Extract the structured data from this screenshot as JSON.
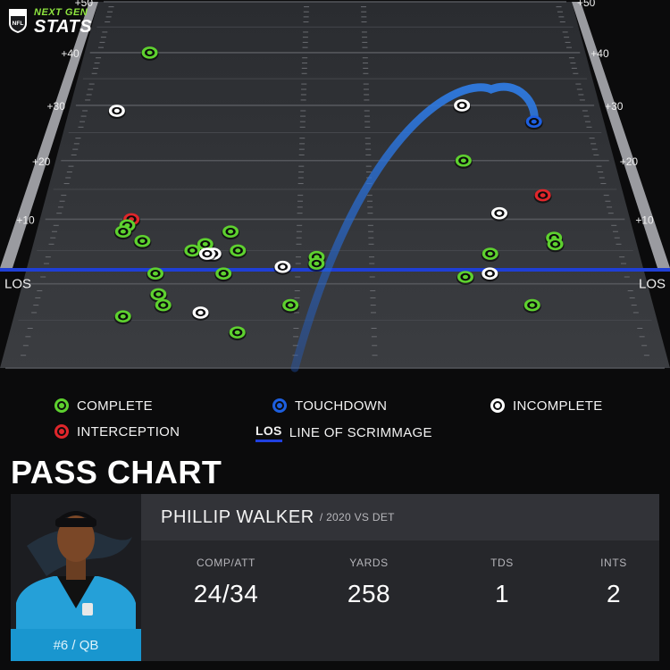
{
  "brand": {
    "league_icon": "nfl-shield-icon",
    "line1": "NEXT GEN",
    "line2": "STATS"
  },
  "chart_data": {
    "type": "scatter",
    "title": "PASS CHART",
    "x_axis": "field width, left to right (sideline to sideline)",
    "y_axis": "yards past line of scrimmage",
    "ylim": [
      -10,
      50
    ],
    "left_yard_labels": [
      "+50",
      "+40",
      "+30",
      "+20",
      "+10",
      "LOS"
    ],
    "right_yard_labels": [
      "+50",
      "+40",
      "+30",
      "+20",
      "+10",
      "LOS"
    ],
    "yard_ticks": [
      50,
      40,
      30,
      20,
      10,
      0
    ],
    "colors": {
      "complete": "#5ed12f",
      "touchdown": "#1d5fe0",
      "incomplete": "#ffffff",
      "interception": "#e0262b",
      "los": "#1f3fd6"
    },
    "points": [
      {
        "x": 0.13,
        "y": 40,
        "result": "complete"
      },
      {
        "x": 0.09,
        "y": 29,
        "result": "incomplete"
      },
      {
        "x": 0.74,
        "y": 30,
        "result": "incomplete"
      },
      {
        "x": 0.73,
        "y": 20,
        "result": "complete"
      },
      {
        "x": 0.86,
        "y": 14,
        "result": "interception"
      },
      {
        "x": 0.78,
        "y": 11,
        "result": "incomplete"
      },
      {
        "x": 0.155,
        "y": 10,
        "result": "interception"
      },
      {
        "x": 0.15,
        "y": 9,
        "result": "complete"
      },
      {
        "x": 0.145,
        "y": 8,
        "result": "complete"
      },
      {
        "x": 0.325,
        "y": 8,
        "result": "complete"
      },
      {
        "x": 0.18,
        "y": 6.5,
        "result": "complete"
      },
      {
        "x": 0.285,
        "y": 6,
        "result": "complete"
      },
      {
        "x": 0.265,
        "y": 5,
        "result": "complete"
      },
      {
        "x": 0.34,
        "y": 5,
        "result": "complete"
      },
      {
        "x": 0.3,
        "y": 4.5,
        "result": "incomplete"
      },
      {
        "x": 0.29,
        "y": 4.5,
        "result": "incomplete"
      },
      {
        "x": 0.865,
        "y": 7,
        "result": "complete"
      },
      {
        "x": 0.865,
        "y": 6,
        "result": "complete"
      },
      {
        "x": 0.755,
        "y": 4.5,
        "result": "complete"
      },
      {
        "x": 0.47,
        "y": 4,
        "result": "complete"
      },
      {
        "x": 0.47,
        "y": 3,
        "result": "complete"
      },
      {
        "x": 0.415,
        "y": 2.5,
        "result": "incomplete"
      },
      {
        "x": 0.21,
        "y": 1.5,
        "result": "complete"
      },
      {
        "x": 0.32,
        "y": 1.5,
        "result": "complete"
      },
      {
        "x": 0.75,
        "y": 1.5,
        "result": "incomplete"
      },
      {
        "x": 0.71,
        "y": 1,
        "result": "complete"
      },
      {
        "x": 0.22,
        "y": -1.5,
        "result": "complete"
      },
      {
        "x": 0.23,
        "y": -3,
        "result": "complete"
      },
      {
        "x": 0.43,
        "y": -3,
        "result": "complete"
      },
      {
        "x": 0.81,
        "y": -3,
        "result": "complete"
      },
      {
        "x": 0.29,
        "y": -4,
        "result": "incomplete"
      },
      {
        "x": 0.17,
        "y": -4.5,
        "result": "complete"
      },
      {
        "x": 0.35,
        "y": -6.5,
        "result": "complete"
      },
      {
        "x": 0.87,
        "y": 27,
        "result": "touchdown"
      }
    ],
    "touchdown_arc": {
      "from": {
        "x": 0.44,
        "y": -10
      },
      "peak": {
        "x": 0.8,
        "y": 33
      },
      "to": {
        "x": 0.87,
        "y": 27
      }
    }
  },
  "legend": {
    "complete": "COMPLETE",
    "touchdown": "TOUCHDOWN",
    "incomplete": "INCOMPLETE",
    "interception": "INTERCEPTION",
    "los_abbr": "LOS",
    "los": "LINE OF SCRIMMAGE"
  },
  "card": {
    "player_name": "PHILLIP WALKER",
    "game_info": "/ 2020 VS DET",
    "jersey": "#6 / QB",
    "photo_icon": "player-headshot-icon",
    "stats": [
      {
        "label": "COMP/ATT",
        "value": "24/34"
      },
      {
        "label": "YARDS",
        "value": "258"
      },
      {
        "label": "TDS",
        "value": "1"
      },
      {
        "label": "INTS",
        "value": "2"
      }
    ]
  }
}
